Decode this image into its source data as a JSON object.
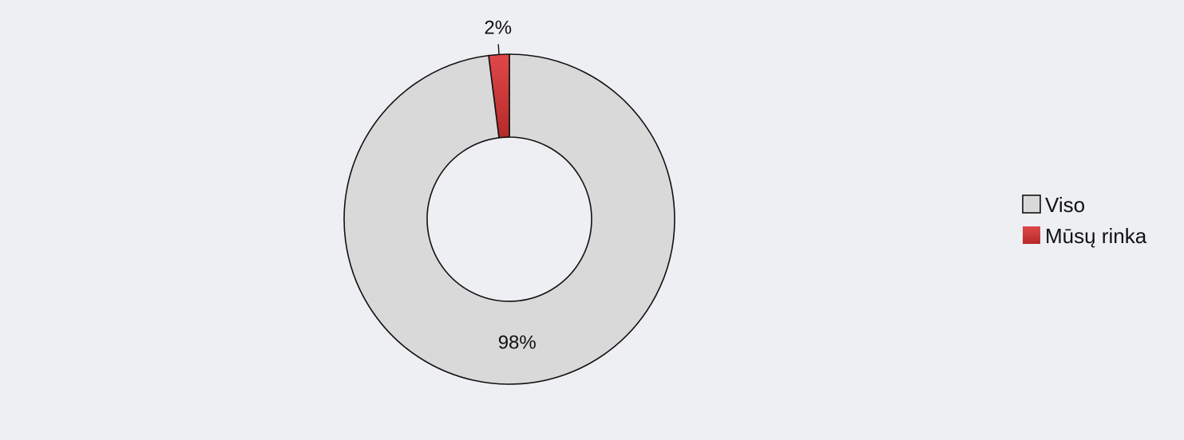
{
  "chart_data": {
    "type": "pie",
    "variant": "donut",
    "title": "",
    "categories": [
      "Viso",
      "Mūsų rinka"
    ],
    "values": [
      98,
      2
    ],
    "data_labels": [
      "98%",
      "2%"
    ],
    "colors": {
      "Viso": "#d9d9d9",
      "Mūsų rinka": "#d03a3a"
    },
    "legend": {
      "position": "right",
      "entries": [
        "Viso",
        "Mūsų rinka"
      ]
    },
    "background": "#eeeff3",
    "hole_color": "#ffffff"
  }
}
